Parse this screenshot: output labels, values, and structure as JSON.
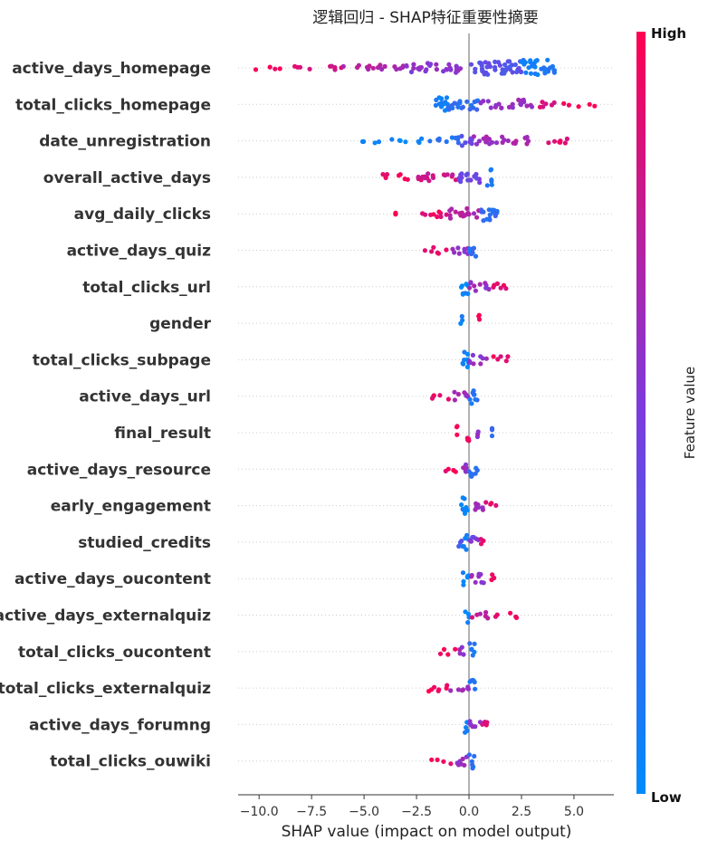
{
  "chart_data": {
    "type": "scatter",
    "subtype": "shap-beeswarm-summary",
    "title": "逻辑回归 - SHAP特征重要性摘要",
    "xlabel": "SHAP value (impact on model output)",
    "ylabel": "",
    "xlim": [
      -11.0,
      6.9
    ],
    "x_ticks": [
      -10.0,
      -7.5,
      -5.0,
      -2.5,
      0.0,
      2.5,
      5.0
    ],
    "x_tick_labels": [
      "−10.0",
      "−7.5",
      "−5.0",
      "−2.5",
      "0.0",
      "2.5",
      "5.0"
    ],
    "zero_line": true,
    "grid": false,
    "colorbar": {
      "title": "Feature value",
      "high_label": "High",
      "low_label": "Low",
      "low_color": "#008bfb",
      "high_color": "#ff0052",
      "position": "right"
    },
    "features": [
      {
        "name": "active_days_homepage",
        "segments": [
          [
            -10.4,
            -9.0,
            0.95,
            0.06
          ],
          [
            -9.0,
            -6.0,
            0.85,
            0.12
          ],
          [
            -6.0,
            -3.0,
            0.7,
            0.25
          ],
          [
            -3.0,
            0.0,
            0.55,
            0.45
          ],
          [
            0.0,
            2.5,
            0.35,
            0.8
          ],
          [
            2.5,
            4.1,
            0.1,
            1.0
          ]
        ]
      },
      {
        "name": "total_clicks_homepage",
        "segments": [
          [
            -1.6,
            -1.0,
            0.05,
            1.0
          ],
          [
            -1.0,
            0.5,
            0.2,
            0.6
          ],
          [
            0.5,
            3.0,
            0.6,
            0.45
          ],
          [
            3.0,
            4.5,
            0.85,
            0.2
          ],
          [
            4.5,
            6.0,
            0.97,
            0.06
          ]
        ]
      },
      {
        "name": "date_unregistration",
        "segments": [
          [
            -5.5,
            -2.0,
            0.0,
            0.06
          ],
          [
            -2.0,
            -0.4,
            0.15,
            0.3
          ],
          [
            -0.4,
            0.2,
            0.4,
            0.6
          ],
          [
            0.2,
            3.0,
            0.65,
            0.4
          ],
          [
            3.0,
            5.3,
            0.92,
            0.15
          ]
        ]
      },
      {
        "name": "overall_active_days",
        "segments": [
          [
            -4.1,
            -2.5,
            0.95,
            0.2
          ],
          [
            -2.5,
            -0.5,
            0.8,
            0.4
          ],
          [
            -0.5,
            0.8,
            0.45,
            0.6
          ],
          [
            0.8,
            1.1,
            0.1,
            1.0
          ]
        ]
      },
      {
        "name": "avg_daily_clicks",
        "segments": [
          [
            -3.5,
            -3.5,
            1.0,
            0.05
          ],
          [
            -2.8,
            -1.0,
            0.9,
            0.25
          ],
          [
            -1.0,
            0.5,
            0.7,
            0.55
          ],
          [
            0.5,
            1.4,
            0.2,
            0.9
          ]
        ]
      },
      {
        "name": "active_days_quiz",
        "segments": [
          [
            -2.1,
            -1.0,
            0.95,
            0.25
          ],
          [
            -1.0,
            0.0,
            0.6,
            0.4
          ],
          [
            0.0,
            0.4,
            0.15,
            1.0
          ]
        ]
      },
      {
        "name": "total_clicks_url",
        "segments": [
          [
            -0.4,
            0.0,
            0.05,
            1.0
          ],
          [
            0.0,
            1.0,
            0.6,
            0.5
          ],
          [
            1.0,
            2.1,
            0.9,
            0.25
          ]
        ]
      },
      {
        "name": "gender",
        "segments": [
          [
            -0.4,
            -0.3,
            0.05,
            1.0
          ],
          [
            0.4,
            0.5,
            0.95,
            1.0
          ]
        ]
      },
      {
        "name": "total_clicks_subpage",
        "segments": [
          [
            -0.4,
            0.0,
            0.05,
            1.0
          ],
          [
            0.0,
            1.0,
            0.6,
            0.5
          ],
          [
            1.0,
            1.9,
            0.9,
            0.25
          ]
        ]
      },
      {
        "name": "active_days_url",
        "segments": [
          [
            -1.9,
            -0.8,
            0.95,
            0.2
          ],
          [
            -0.8,
            0.0,
            0.6,
            0.4
          ],
          [
            0.0,
            0.4,
            0.15,
            1.0
          ]
        ]
      },
      {
        "name": "final_result",
        "segments": [
          [
            -0.6,
            -0.5,
            0.97,
            1.0
          ],
          [
            -0.1,
            0.1,
            0.95,
            1.0
          ],
          [
            0.4,
            0.5,
            0.6,
            0.7
          ],
          [
            1.1,
            1.1,
            0.2,
            0.4
          ]
        ]
      },
      {
        "name": "active_days_resource",
        "segments": [
          [
            -1.3,
            -0.5,
            0.95,
            0.25
          ],
          [
            -0.5,
            0.0,
            0.6,
            0.45
          ],
          [
            0.0,
            0.4,
            0.15,
            1.0
          ]
        ]
      },
      {
        "name": "early_engagement",
        "segments": [
          [
            -0.4,
            0.0,
            0.05,
            1.0
          ],
          [
            0.0,
            0.8,
            0.6,
            0.5
          ],
          [
            0.8,
            1.6,
            0.9,
            0.25
          ]
        ]
      },
      {
        "name": "studied_credits",
        "segments": [
          [
            -0.6,
            -0.3,
            0.3,
            0.5
          ],
          [
            -0.3,
            0.0,
            0.1,
            1.0
          ],
          [
            0.0,
            0.5,
            0.5,
            0.7
          ],
          [
            0.5,
            1.0,
            0.9,
            0.3
          ]
        ]
      },
      {
        "name": "active_days_oucontent",
        "segments": [
          [
            -0.3,
            0.0,
            0.05,
            1.0
          ],
          [
            0.0,
            0.8,
            0.6,
            0.45
          ],
          [
            0.8,
            1.2,
            0.9,
            0.35
          ]
        ]
      },
      {
        "name": "active_days_externalquiz",
        "segments": [
          [
            -0.2,
            0.0,
            0.05,
            1.0
          ],
          [
            0.0,
            1.2,
            0.75,
            0.25
          ],
          [
            1.2,
            2.3,
            0.95,
            0.2
          ]
        ]
      },
      {
        "name": "total_clicks_oucontent",
        "segments": [
          [
            -1.4,
            -0.5,
            0.95,
            0.2
          ],
          [
            -0.5,
            0.0,
            0.6,
            0.4
          ],
          [
            0.0,
            0.3,
            0.15,
            1.0
          ]
        ]
      },
      {
        "name": "total_clicks_externalquiz",
        "segments": [
          [
            -2.3,
            -1.0,
            0.95,
            0.25
          ],
          [
            -1.0,
            0.0,
            0.65,
            0.35
          ],
          [
            0.0,
            0.3,
            0.1,
            1.0
          ]
        ]
      },
      {
        "name": "active_days_forumng",
        "segments": [
          [
            -0.2,
            0.0,
            0.05,
            1.0
          ],
          [
            0.0,
            0.6,
            0.55,
            0.45
          ],
          [
            0.6,
            1.1,
            0.9,
            0.35
          ]
        ]
      },
      {
        "name": "total_clicks_ouwiki",
        "segments": [
          [
            -1.8,
            -0.8,
            0.95,
            0.2
          ],
          [
            -0.8,
            0.0,
            0.6,
            0.4
          ],
          [
            0.0,
            0.3,
            0.15,
            1.0
          ]
        ]
      }
    ]
  }
}
